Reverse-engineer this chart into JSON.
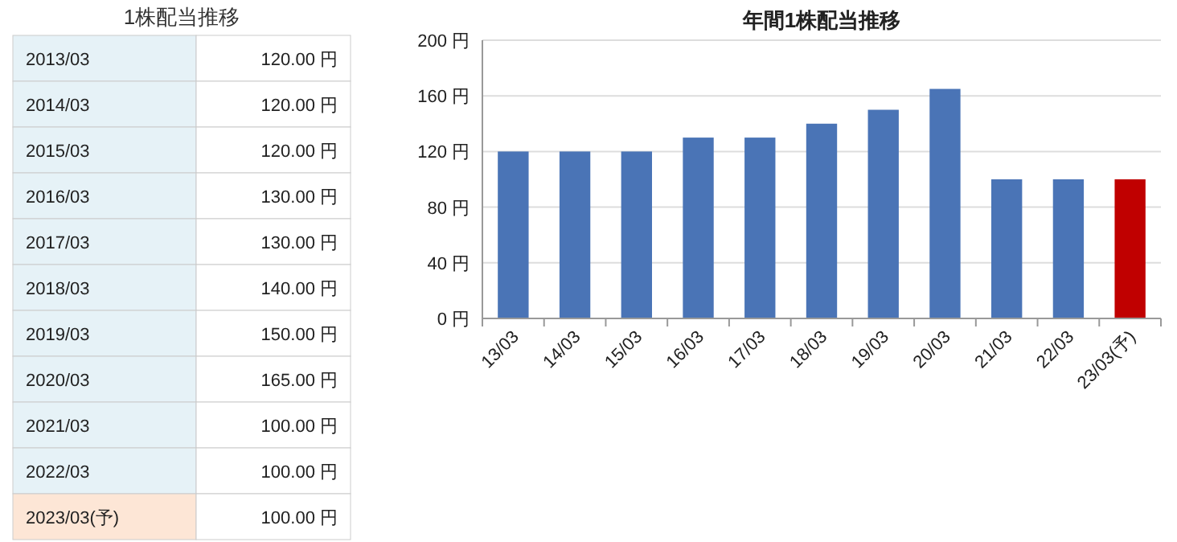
{
  "chart_data": [
    {
      "type": "other",
      "title": "1株配当推移",
      "categories": [
        "2013/03",
        "2014/03",
        "2015/03",
        "2016/03",
        "2017/03",
        "2018/03",
        "2019/03",
        "2020/03",
        "2021/03",
        "2022/03",
        "2023/03(予)"
      ],
      "value_labels": [
        "120.00 円",
        "120.00 円",
        "120.00 円",
        "130.00 円",
        "130.00 円",
        "140.00 円",
        "150.00 円",
        "165.00 円",
        "100.00 円",
        "100.00 円",
        "100.00 円"
      ]
    },
    {
      "type": "bar",
      "title": "年間1株配当推移",
      "categories": [
        "13/03",
        "14/03",
        "15/03",
        "16/03",
        "17/03",
        "18/03",
        "19/03",
        "20/03",
        "21/03",
        "22/03",
        "23/03(予)"
      ],
      "values": [
        120,
        120,
        120,
        130,
        130,
        140,
        150,
        165,
        100,
        100,
        100
      ],
      "colors": [
        "#4a74b6",
        "#4a74b6",
        "#4a74b6",
        "#4a74b6",
        "#4a74b6",
        "#4a74b6",
        "#4a74b6",
        "#4a74b6",
        "#4a74b6",
        "#4a74b6",
        "#c00000"
      ],
      "ylim": [
        0,
        200
      ],
      "yticks": [
        {
          "value": 0,
          "label": "0 円"
        },
        {
          "value": 40,
          "label": "40 円"
        },
        {
          "value": 80,
          "label": "80 円"
        },
        {
          "value": 120,
          "label": "120 円"
        },
        {
          "value": 160,
          "label": "160 円"
        },
        {
          "value": 200,
          "label": "200 円"
        }
      ],
      "grid": "y"
    }
  ]
}
